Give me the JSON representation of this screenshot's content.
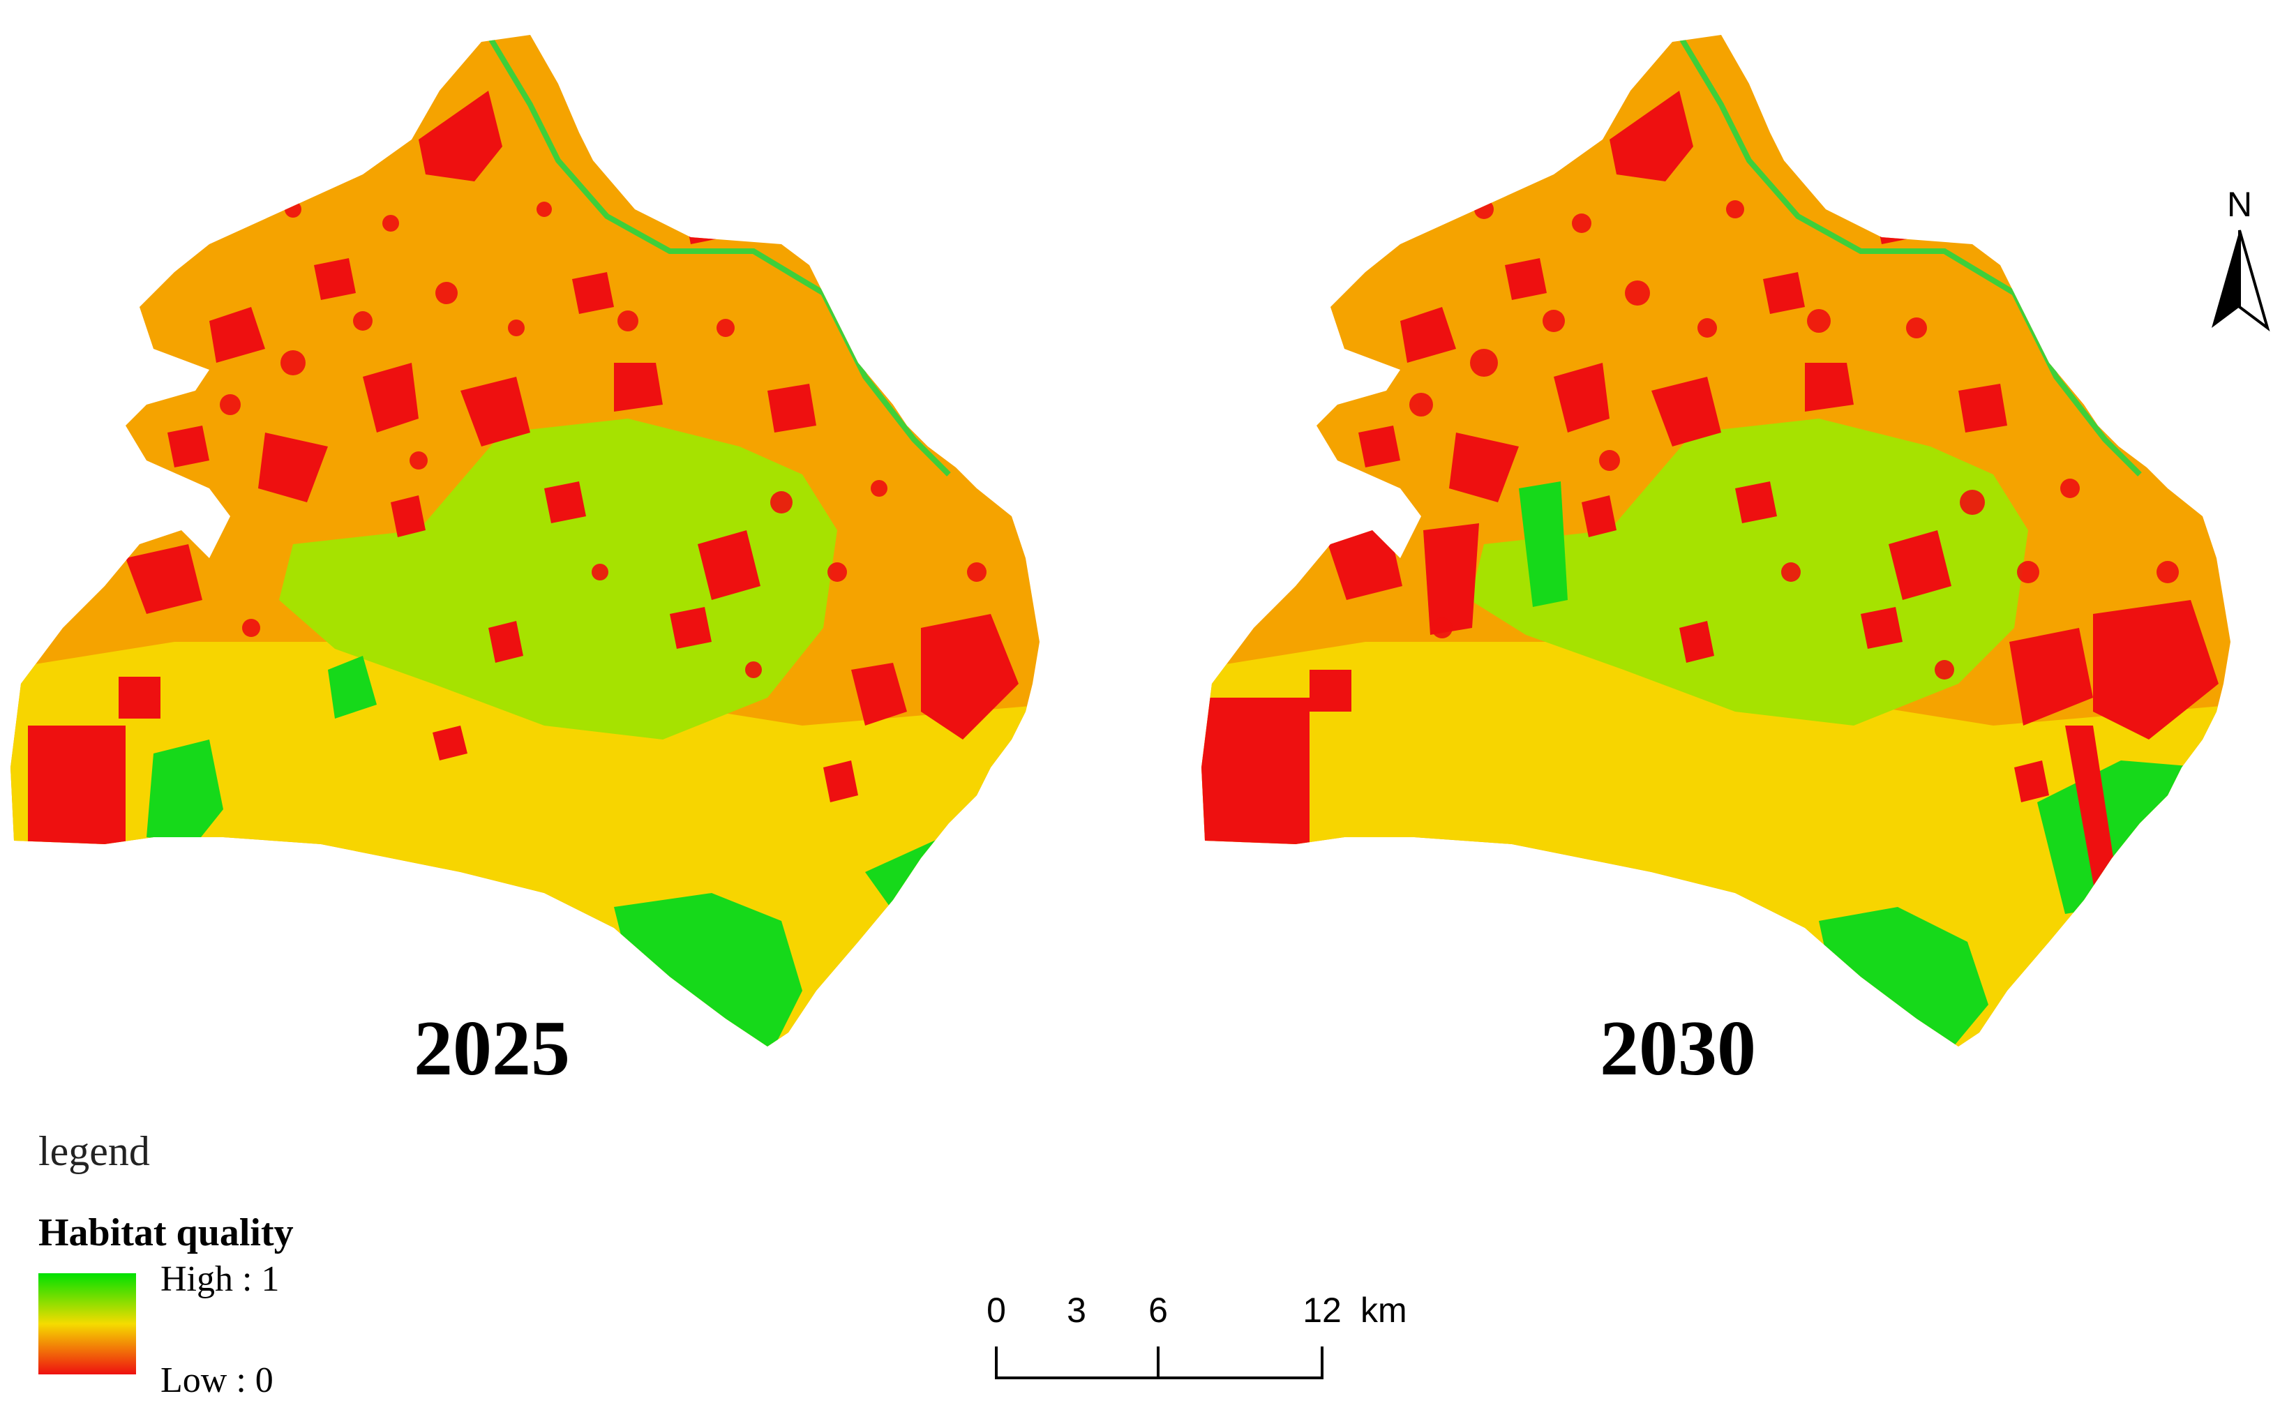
{
  "maps": [
    {
      "year": "2025"
    },
    {
      "year": "2030"
    }
  ],
  "north_arrow": {
    "label": "N"
  },
  "legend": {
    "title": "legend",
    "layer_name": "Habitat quality",
    "high_label": "High : 1",
    "low_label": "Low : 0",
    "colors": {
      "high": "#00e000",
      "mid": "#f5dc00",
      "low": "#ee1010"
    }
  },
  "scale_bar": {
    "ticks": [
      "0",
      "3",
      "6",
      "12"
    ],
    "unit": "km"
  },
  "palette": {
    "low": "#ee1010",
    "medium_low": "#f5a300",
    "medium": "#f7d500",
    "medium_high": "#a6e200",
    "high": "#16d91a"
  }
}
